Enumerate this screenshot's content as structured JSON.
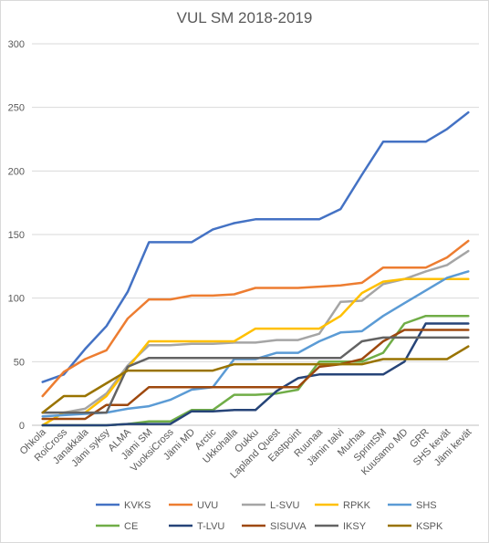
{
  "chart_data": {
    "type": "line",
    "title": "VUL SM 2018-2019",
    "xlabel": "",
    "ylabel": "",
    "ylim": [
      0,
      300
    ],
    "yticks": [
      0,
      50,
      100,
      150,
      200,
      250,
      300
    ],
    "grid": true,
    "legend_position": "bottom",
    "categories": [
      "Ohkola",
      "RoiCross",
      "Janakkala",
      "Jämi syksy",
      "ALMA",
      "Jämi SM",
      "VuoksiCross",
      "Jämi MD",
      "Arctic",
      "Ukkohalla",
      "Oukku",
      "Lapland Quest",
      "Eastpoint",
      "Ruunaa",
      "Jämin talvi",
      "Murhaa",
      "SprintSM",
      "Kuusamo MD",
      "GRR",
      "SHS kevät",
      "Jämi kevät"
    ],
    "series": [
      {
        "name": "KVKS",
        "color": "#4472C4",
        "values": [
          34,
          40,
          60,
          78,
          105,
          144,
          144,
          144,
          154,
          159,
          162,
          162,
          162,
          162,
          170,
          197,
          223,
          223,
          223,
          233,
          246
        ]
      },
      {
        "name": "UVU",
        "color": "#ED7D31",
        "values": [
          23,
          42,
          52,
          59,
          84,
          99,
          99,
          102,
          102,
          103,
          108,
          108,
          108,
          109,
          110,
          112,
          124,
          124,
          124,
          132,
          145
        ]
      },
      {
        "name": "L-SVU",
        "color": "#A5A5A5",
        "values": [
          10,
          10,
          13,
          25,
          47,
          63,
          63,
          64,
          64,
          65,
          65,
          67,
          67,
          72,
          97,
          98,
          111,
          115,
          121,
          126,
          137
        ]
      },
      {
        "name": "RPKK",
        "color": "#FFC000",
        "values": [
          0,
          10,
          10,
          23,
          45,
          66,
          66,
          66,
          66,
          66,
          76,
          76,
          76,
          76,
          86,
          104,
          113,
          115,
          115,
          115,
          115
        ]
      },
      {
        "name": "SHS",
        "color": "#5B9BD5",
        "values": [
          7,
          8,
          9,
          10,
          13,
          15,
          20,
          28,
          30,
          52,
          52,
          57,
          57,
          66,
          73,
          74,
          86,
          96,
          106,
          116,
          121
        ]
      },
      {
        "name": "CE",
        "color": "#70AD47",
        "values": [
          0,
          0,
          0,
          0,
          1,
          3,
          3,
          12,
          12,
          24,
          24,
          25,
          28,
          50,
          50,
          50,
          57,
          80,
          86,
          86,
          86
        ]
      },
      {
        "name": "T-LVU",
        "color": "#264478",
        "values": [
          0,
          0,
          0,
          0,
          1,
          1,
          1,
          11,
          11,
          12,
          12,
          27,
          37,
          40,
          40,
          40,
          40,
          50,
          80,
          80,
          80
        ]
      },
      {
        "name": "SISUVA",
        "color": "#9E480E",
        "values": [
          5,
          5,
          5,
          16,
          16,
          30,
          30,
          30,
          30,
          30,
          30,
          30,
          30,
          46,
          48,
          52,
          66,
          75,
          75,
          75,
          75
        ]
      },
      {
        "name": "IKSY",
        "color": "#636363",
        "values": [
          10,
          10,
          10,
          10,
          46,
          53,
          53,
          53,
          53,
          53,
          53,
          53,
          53,
          53,
          53,
          66,
          69,
          69,
          69,
          69,
          69
        ]
      },
      {
        "name": "KSPK",
        "color": "#997300",
        "values": [
          10,
          23,
          23,
          33,
          43,
          43,
          43,
          43,
          43,
          48,
          48,
          48,
          48,
          48,
          48,
          48,
          52,
          52,
          52,
          52,
          62
        ]
      }
    ]
  }
}
